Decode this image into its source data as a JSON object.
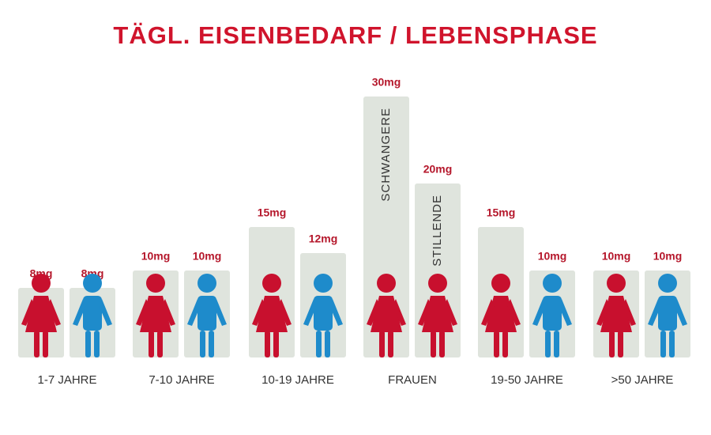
{
  "chart_data": {
    "type": "bar",
    "title": "TÄGL. EISENBEDARF / LEBENSPHASE",
    "categories": [
      "1-7 JAHRE",
      "7-10 JAHRE",
      "10-19 JAHRE",
      "FRAUEN",
      "19-50 JAHRE",
      ">50 JAHRE"
    ],
    "ylim": [
      0,
      30
    ],
    "bar_color": "#dfe4dd",
    "label_color": "#b5172b",
    "series": [
      {
        "colors": [
          "#c8102e",
          "#c8102e",
          "#c8102e",
          "#c8102e",
          "#c8102e",
          "#c8102e"
        ],
        "values": [
          8,
          10,
          15,
          30,
          15,
          10
        ],
        "value_labels": [
          "8mg",
          "10mg",
          "15mg",
          "30mg",
          "15mg",
          "10mg"
        ],
        "inner_labels": [
          null,
          null,
          null,
          "SCHWANGERE",
          null,
          null
        ]
      },
      {
        "colors": [
          "#1e8bcb",
          "#1e8bcb",
          "#1e8bcb",
          "#c8102e",
          "#1e8bcb",
          "#1e8bcb"
        ],
        "values": [
          8,
          10,
          12,
          20,
          10,
          10
        ],
        "value_labels": [
          "8mg",
          "10mg",
          "12mg",
          "20mg",
          "10mg",
          "10mg"
        ],
        "inner_labels": [
          null,
          null,
          null,
          "STILLENDE",
          null,
          null
        ]
      }
    ]
  }
}
